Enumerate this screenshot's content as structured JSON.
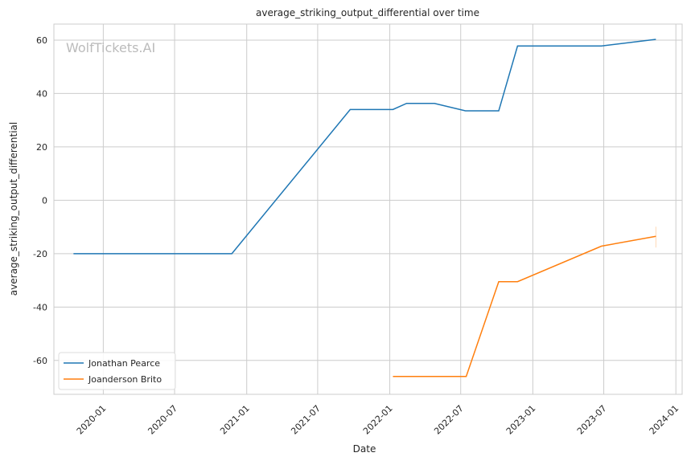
{
  "chart_data": {
    "type": "line",
    "title": "average_striking_output_differential over time",
    "xlabel": "Date",
    "ylabel": "average_striking_output_differential",
    "watermark": "WolfTickets.AI",
    "grid": true,
    "legend_position": "lower-left",
    "xlim": [
      "2019-08-28",
      "2024-01-17"
    ],
    "ylim": [
      -72.7,
      66
    ],
    "x_ticks": [
      "2020-01",
      "2020-07",
      "2021-01",
      "2021-07",
      "2022-01",
      "2022-07",
      "2023-01",
      "2023-07",
      "2024-01"
    ],
    "y_ticks": [
      -60,
      -40,
      -20,
      0,
      20,
      40,
      60
    ],
    "series": [
      {
        "name": "Jonathan Pearce",
        "color": "#1f77b4",
        "x": [
          "2019-10-17",
          "2020-11-24",
          "2021-09-22",
          "2022-01-09",
          "2022-02-13",
          "2022-04-25",
          "2022-07-13",
          "2022-10-06",
          "2022-11-23",
          "2023-06-25",
          "2023-11-11"
        ],
        "y": [
          -20,
          -20,
          34,
          34,
          36.3,
          36.3,
          33.5,
          33.5,
          57.8,
          57.8,
          60.3
        ]
      },
      {
        "name": "Joanderson Brito",
        "color": "#ff7f0e",
        "x": [
          "2022-01-09",
          "2022-07-15",
          "2022-10-06",
          "2022-11-23",
          "2023-06-25",
          "2023-11-11"
        ],
        "y": [
          -66,
          -66,
          -30.5,
          -30.5,
          -17.2,
          -13.5
        ],
        "band_last": [
          -17.7,
          -9.9
        ]
      }
    ]
  }
}
